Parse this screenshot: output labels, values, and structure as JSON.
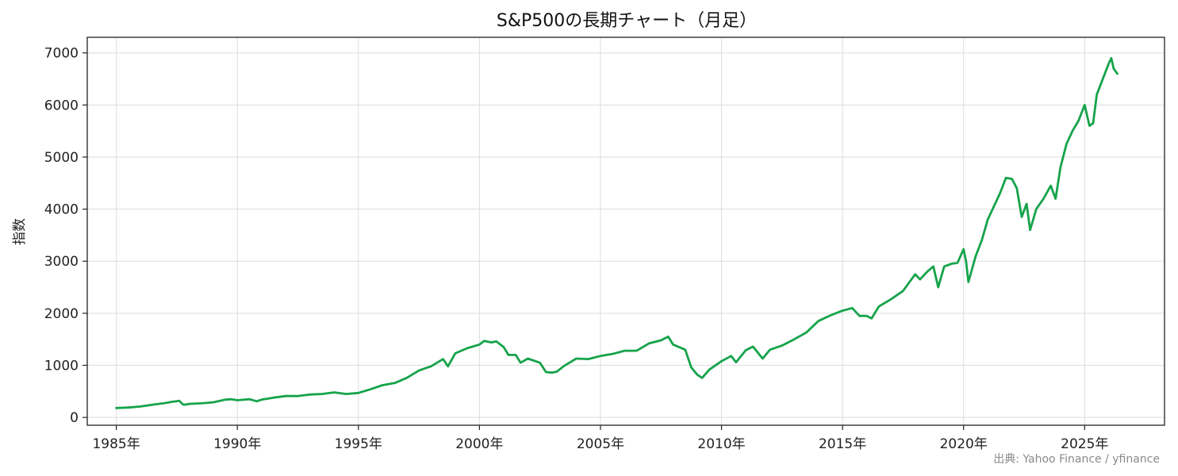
{
  "chart_data": {
    "type": "line",
    "title": "S&P500の長期チャート（月足）",
    "xlabel": "",
    "ylabel": "指数",
    "source": "出典: Yahoo Finance / yfinance",
    "xlim": [
      1983.8,
      2028.3
    ],
    "ylim": [
      -150,
      7300
    ],
    "x_ticks": [
      {
        "value": 1985,
        "label": "1985年"
      },
      {
        "value": 1990,
        "label": "1990年"
      },
      {
        "value": 1995,
        "label": "1995年"
      },
      {
        "value": 2000,
        "label": "2000年"
      },
      {
        "value": 2005,
        "label": "2005年"
      },
      {
        "value": 2010,
        "label": "2010年"
      },
      {
        "value": 2015,
        "label": "2015年"
      },
      {
        "value": 2020,
        "label": "2020年"
      },
      {
        "value": 2025,
        "label": "2025年"
      }
    ],
    "y_ticks": [
      {
        "value": 0,
        "label": "0"
      },
      {
        "value": 1000,
        "label": "1000"
      },
      {
        "value": 2000,
        "label": "2000"
      },
      {
        "value": 3000,
        "label": "3000"
      },
      {
        "value": 4000,
        "label": "4000"
      },
      {
        "value": 5000,
        "label": "5000"
      },
      {
        "value": 6000,
        "label": "6000"
      },
      {
        "value": 7000,
        "label": "7000"
      }
    ],
    "grid": true,
    "legend": "none",
    "colors": {
      "line": "#16a34a",
      "grid": "#dddddd",
      "axis": "#222222"
    },
    "series": [
      {
        "x": [
          1985.0,
          1985.5,
          1986.0,
          1986.5,
          1987.0,
          1987.3,
          1987.6,
          1987.75,
          1987.85,
          1988.0,
          1988.5,
          1989.0,
          1989.5,
          1989.75,
          1990.0,
          1990.5,
          1990.8,
          1991.0,
          1991.5,
          1992.0,
          1992.5,
          1993.0,
          1993.5,
          1994.0,
          1994.5,
          1995.0,
          1995.5,
          1996.0,
          1996.5,
          1997.0,
          1997.5,
          1997.8,
          1998.0,
          1998.5,
          1998.7,
          1999.0,
          1999.5,
          2000.0,
          2000.2,
          2000.5,
          2000.7,
          2001.0,
          2001.2,
          2001.5,
          2001.7,
          2002.0,
          2002.5,
          2002.75,
          2003.0,
          2003.2,
          2003.5,
          2004.0,
          2004.5,
          2005.0,
          2005.5,
          2006.0,
          2006.5,
          2007.0,
          2007.5,
          2007.8,
          2008.0,
          2008.5,
          2008.75,
          2009.0,
          2009.2,
          2009.5,
          2010.0,
          2010.4,
          2010.6,
          2011.0,
          2011.3,
          2011.7,
          2012.0,
          2012.5,
          2013.0,
          2013.5,
          2014.0,
          2014.5,
          2015.0,
          2015.4,
          2015.7,
          2016.0,
          2016.2,
          2016.5,
          2017.0,
          2017.5,
          2018.0,
          2018.2,
          2018.5,
          2018.75,
          2018.95,
          2019.2,
          2019.5,
          2019.75,
          2020.0,
          2020.1,
          2020.2,
          2020.5,
          2020.75,
          2021.0,
          2021.5,
          2021.75,
          2022.0,
          2022.2,
          2022.4,
          2022.6,
          2022.75,
          2023.0,
          2023.3,
          2023.6,
          2023.8,
          2024.0,
          2024.25,
          2024.5,
          2024.75,
          2025.0,
          2025.2,
          2025.35,
          2025.5,
          2025.75,
          2026.0,
          2026.1,
          2026.2,
          2026.35
        ],
        "y": [
          180,
          190,
          210,
          245,
          275,
          300,
          320,
          250,
          245,
          260,
          270,
          290,
          340,
          350,
          330,
          350,
          310,
          340,
          380,
          410,
          410,
          440,
          450,
          480,
          450,
          470,
          540,
          620,
          660,
          760,
          900,
          950,
          980,
          1120,
          980,
          1230,
          1330,
          1400,
          1470,
          1440,
          1460,
          1350,
          1200,
          1200,
          1050,
          1130,
          1050,
          870,
          860,
          880,
          990,
          1130,
          1120,
          1180,
          1220,
          1280,
          1280,
          1420,
          1480,
          1550,
          1400,
          1300,
          960,
          820,
          760,
          920,
          1080,
          1180,
          1060,
          1290,
          1360,
          1130,
          1300,
          1380,
          1500,
          1630,
          1850,
          1960,
          2050,
          2100,
          1950,
          1950,
          1900,
          2130,
          2270,
          2430,
          2750,
          2650,
          2800,
          2900,
          2500,
          2900,
          2950,
          2970,
          3230,
          3000,
          2600,
          3100,
          3400,
          3800,
          4300,
          4600,
          4580,
          4400,
          3850,
          4100,
          3600,
          4000,
          4200,
          4450,
          4200,
          4800,
          5250,
          5500,
          5700,
          6000,
          5600,
          5650,
          6200,
          6500,
          6800,
          6900,
          6700,
          6600
        ]
      }
    ]
  }
}
